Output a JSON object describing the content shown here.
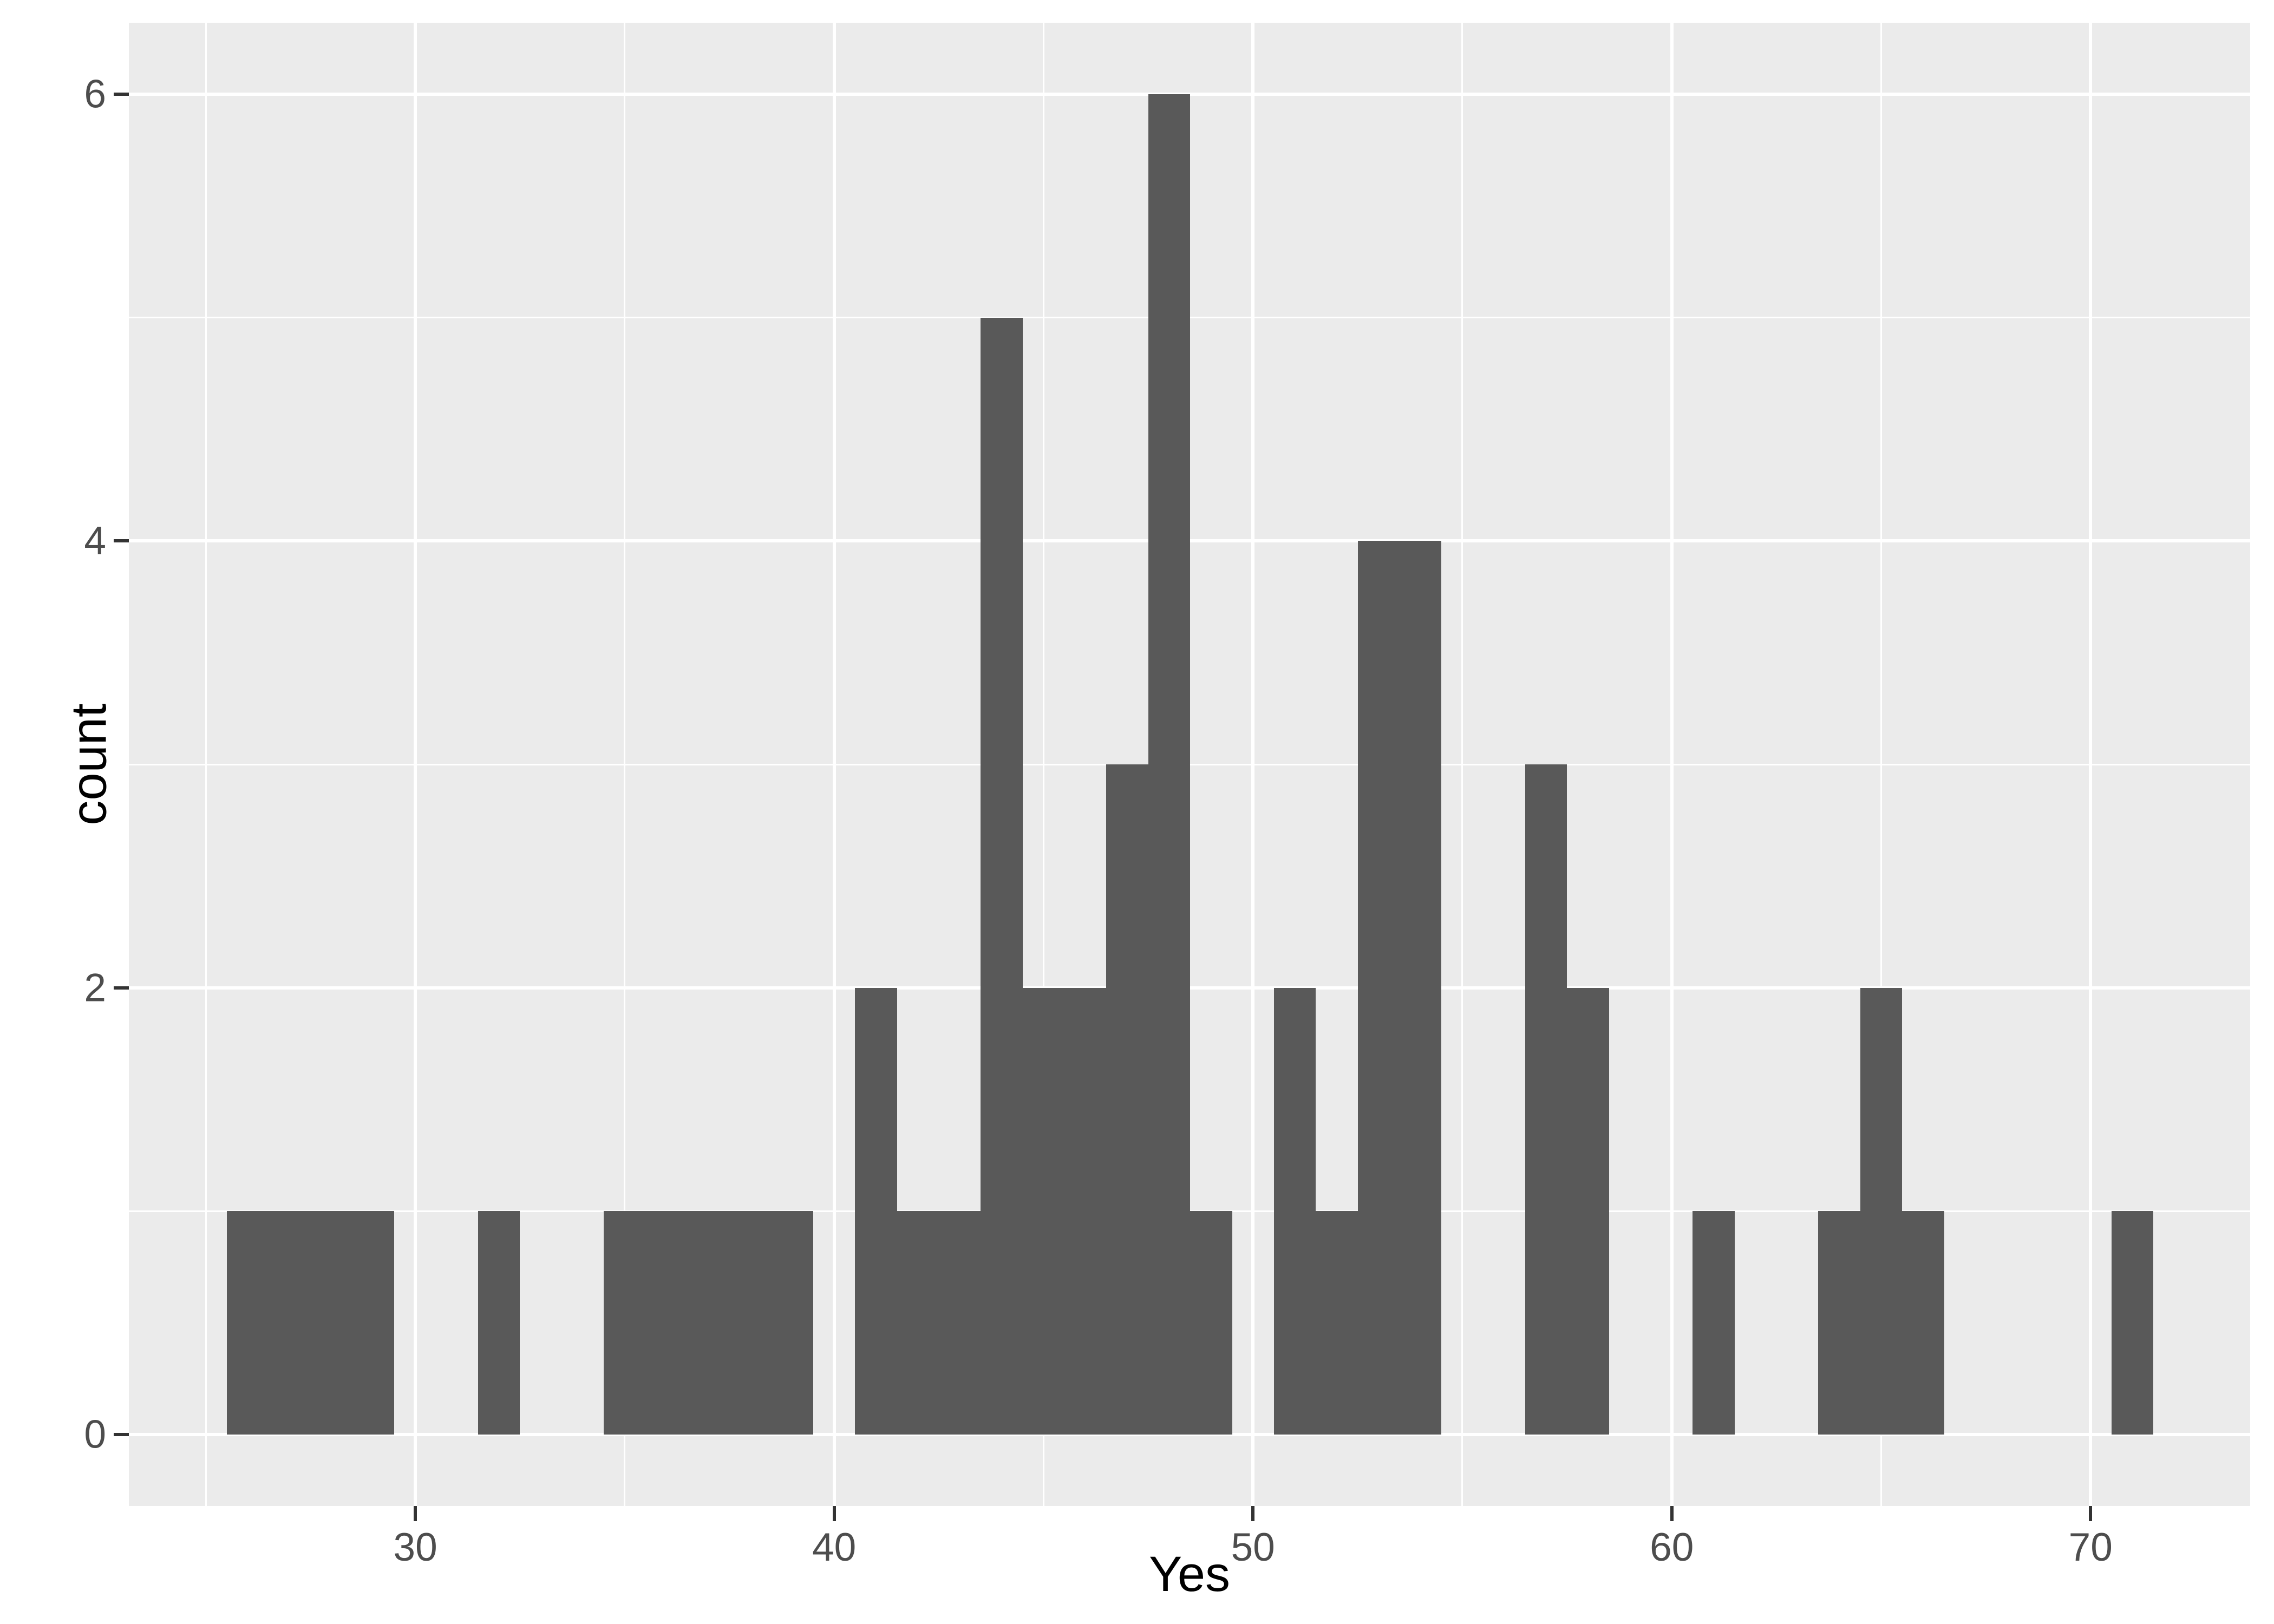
{
  "chart_data": {
    "type": "bar",
    "subtype": "histogram",
    "title": "",
    "xlabel": "Yes",
    "ylabel": "count",
    "binwidth": 1,
    "bin_centers": [
      26,
      27,
      28,
      29,
      30,
      31,
      32,
      33,
      34,
      35,
      36,
      37,
      38,
      39,
      40,
      41,
      42,
      43,
      44,
      45,
      46,
      47,
      48,
      49,
      50,
      51,
      52,
      53,
      54,
      55,
      56,
      57,
      58,
      59,
      60,
      61,
      62,
      63,
      64,
      65,
      66,
      67,
      68,
      69,
      70,
      71
    ],
    "counts": [
      1,
      1,
      1,
      1,
      0,
      0,
      1,
      0,
      0,
      1,
      1,
      1,
      1,
      1,
      0,
      2,
      1,
      1,
      5,
      2,
      2,
      3,
      6,
      1,
      0,
      2,
      1,
      4,
      4,
      0,
      0,
      3,
      2,
      0,
      0,
      1,
      0,
      0,
      1,
      2,
      1,
      0,
      0,
      0,
      0,
      1
    ],
    "x_ticks": [
      30,
      40,
      50,
      60,
      70
    ],
    "x_minor_ticks": [
      25,
      35,
      45,
      55,
      65
    ],
    "y_ticks": [
      0,
      2,
      4,
      6
    ],
    "y_minor_ticks": [
      1,
      3,
      5
    ],
    "xlim": [
      23.16,
      73.81
    ],
    "ylim": [
      -0.32,
      6.32
    ],
    "grid": "on",
    "legend": "none"
  },
  "colors": {
    "bar_fill": "#595959",
    "panel_background": "#EBEBEB",
    "gridline": "#FFFFFF",
    "tick_mark": "#333333",
    "tick_label": "#4D4D4D",
    "axis_title": "#000000",
    "figure_background": "#FFFFFF"
  }
}
